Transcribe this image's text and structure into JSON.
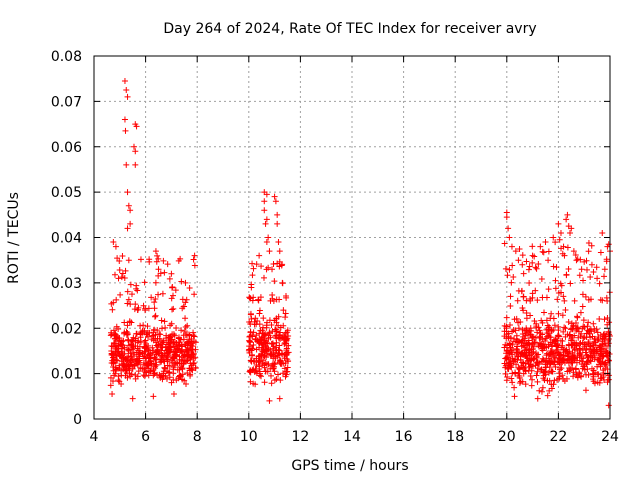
{
  "chart_data": {
    "type": "scatter",
    "title": "Day 264 of 2024, Rate Of TEC Index for receiver avry",
    "xlabel": "GPS time / hours",
    "ylabel": "ROTI / TECUs",
    "xlim": [
      4,
      24
    ],
    "ylim": [
      0,
      0.08
    ],
    "grid": true,
    "marker": "+",
    "color": "#ff0000",
    "x_ticks": [
      "4",
      "6",
      "8",
      "10",
      "12",
      "14",
      "16",
      "18",
      "20",
      "22",
      "24"
    ],
    "y_ticks": [
      "0",
      "0.01",
      "0.02",
      "0.03",
      "0.04",
      "0.05",
      "0.06",
      "0.07",
      "0.08"
    ],
    "clusters": [
      {
        "x_range": [
          4.65,
          7.95
        ],
        "typical_range": [
          0.005,
          0.024
        ],
        "upper_range": [
          0.024,
          0.036
        ]
      },
      {
        "x_range": [
          10.0,
          11.55
        ],
        "typical_range": [
          0.005,
          0.026
        ],
        "upper_range": [
          0.026,
          0.035
        ]
      },
      {
        "x_range": [
          19.9,
          24.0
        ],
        "typical_range": [
          0.004,
          0.026
        ],
        "upper_range": [
          0.026,
          0.039
        ]
      }
    ],
    "peaks": [
      {
        "x": 4.75,
        "y": 0.039
      },
      {
        "x": 4.85,
        "y": 0.038
      },
      {
        "x": 4.95,
        "y": 0.031
      },
      {
        "x": 5.2,
        "y": 0.0745
      },
      {
        "x": 5.25,
        "y": 0.0725
      },
      {
        "x": 5.3,
        "y": 0.071
      },
      {
        "x": 5.2,
        "y": 0.066
      },
      {
        "x": 5.22,
        "y": 0.0635
      },
      {
        "x": 5.25,
        "y": 0.056
      },
      {
        "x": 5.3,
        "y": 0.05
      },
      {
        "x": 5.35,
        "y": 0.047
      },
      {
        "x": 5.4,
        "y": 0.046
      },
      {
        "x": 5.4,
        "y": 0.043
      },
      {
        "x": 5.3,
        "y": 0.042
      },
      {
        "x": 5.35,
        "y": 0.035
      },
      {
        "x": 5.6,
        "y": 0.065
      },
      {
        "x": 5.65,
        "y": 0.0645
      },
      {
        "x": 5.55,
        "y": 0.06
      },
      {
        "x": 5.6,
        "y": 0.059
      },
      {
        "x": 5.6,
        "y": 0.056
      },
      {
        "x": 6.4,
        "y": 0.037
      },
      {
        "x": 6.5,
        "y": 0.033
      },
      {
        "x": 7.0,
        "y": 0.032
      },
      {
        "x": 7.9,
        "y": 0.036
      },
      {
        "x": 10.4,
        "y": 0.036
      },
      {
        "x": 10.6,
        "y": 0.05
      },
      {
        "x": 10.7,
        "y": 0.0495
      },
      {
        "x": 10.6,
        "y": 0.048
      },
      {
        "x": 10.6,
        "y": 0.046
      },
      {
        "x": 10.7,
        "y": 0.044
      },
      {
        "x": 10.65,
        "y": 0.043
      },
      {
        "x": 10.75,
        "y": 0.04
      },
      {
        "x": 10.7,
        "y": 0.039
      },
      {
        "x": 10.8,
        "y": 0.037
      },
      {
        "x": 10.9,
        "y": 0.033
      },
      {
        "x": 11.0,
        "y": 0.049
      },
      {
        "x": 11.05,
        "y": 0.048
      },
      {
        "x": 11.1,
        "y": 0.045
      },
      {
        "x": 11.1,
        "y": 0.043
      },
      {
        "x": 11.15,
        "y": 0.039
      },
      {
        "x": 11.2,
        "y": 0.037
      },
      {
        "x": 11.3,
        "y": 0.03
      },
      {
        "x": 20.0,
        "y": 0.0455
      },
      {
        "x": 20.0,
        "y": 0.0445
      },
      {
        "x": 20.05,
        "y": 0.042
      },
      {
        "x": 20.1,
        "y": 0.04
      },
      {
        "x": 20.2,
        "y": 0.038
      },
      {
        "x": 20.35,
        "y": 0.037
      },
      {
        "x": 20.45,
        "y": 0.035
      },
      {
        "x": 20.6,
        "y": 0.034
      },
      {
        "x": 21.0,
        "y": 0.036
      },
      {
        "x": 21.3,
        "y": 0.038
      },
      {
        "x": 21.5,
        "y": 0.039
      },
      {
        "x": 21.6,
        "y": 0.035
      },
      {
        "x": 21.8,
        "y": 0.04
      },
      {
        "x": 22.0,
        "y": 0.043
      },
      {
        "x": 22.05,
        "y": 0.0395
      },
      {
        "x": 22.1,
        "y": 0.041
      },
      {
        "x": 22.2,
        "y": 0.038
      },
      {
        "x": 22.3,
        "y": 0.044
      },
      {
        "x": 22.35,
        "y": 0.045
      },
      {
        "x": 22.4,
        "y": 0.0425
      },
      {
        "x": 22.45,
        "y": 0.041
      },
      {
        "x": 22.5,
        "y": 0.042
      },
      {
        "x": 22.6,
        "y": 0.037
      },
      {
        "x": 22.7,
        "y": 0.035
      },
      {
        "x": 22.9,
        "y": 0.033
      },
      {
        "x": 23.3,
        "y": 0.034
      },
      {
        "x": 23.5,
        "y": 0.031
      },
      {
        "x": 23.7,
        "y": 0.041
      },
      {
        "x": 23.8,
        "y": 0.033
      },
      {
        "x": 23.9,
        "y": 0.038
      },
      {
        "x": 23.95,
        "y": 0.0385
      },
      {
        "x": 24.0,
        "y": 0.037
      },
      {
        "x": 4.7,
        "y": 0.0055
      },
      {
        "x": 5.5,
        "y": 0.0045
      },
      {
        "x": 6.3,
        "y": 0.005
      },
      {
        "x": 7.1,
        "y": 0.0055
      },
      {
        "x": 10.8,
        "y": 0.004
      },
      {
        "x": 11.2,
        "y": 0.0045
      },
      {
        "x": 20.3,
        "y": 0.005
      },
      {
        "x": 21.2,
        "y": 0.0045
      },
      {
        "x": 23.95,
        "y": 0.003
      }
    ]
  }
}
